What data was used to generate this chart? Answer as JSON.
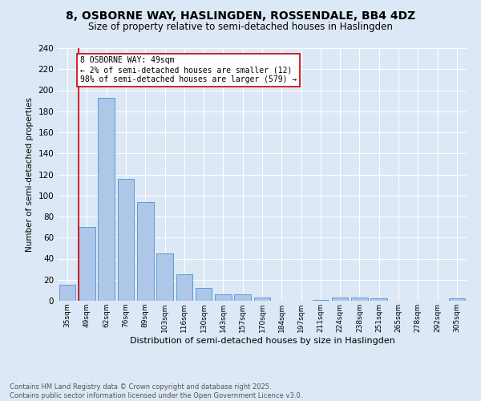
{
  "title": "8, OSBORNE WAY, HASLINGDEN, ROSSENDALE, BB4 4DZ",
  "subtitle": "Size of property relative to semi-detached houses in Haslingden",
  "xlabel": "Distribution of semi-detached houses by size in Haslingden",
  "ylabel": "Number of semi-detached properties",
  "categories": [
    "35sqm",
    "49sqm",
    "62sqm",
    "76sqm",
    "89sqm",
    "103sqm",
    "116sqm",
    "130sqm",
    "143sqm",
    "157sqm",
    "170sqm",
    "184sqm",
    "197sqm",
    "211sqm",
    "224sqm",
    "238sqm",
    "251sqm",
    "265sqm",
    "278sqm",
    "292sqm",
    "305sqm"
  ],
  "bar_values": [
    15,
    70,
    193,
    116,
    94,
    45,
    25,
    12,
    6,
    6,
    3,
    0,
    0,
    1,
    3,
    3,
    2,
    0,
    0,
    0,
    2
  ],
  "bar_color": "#aec6e8",
  "bar_edge_color": "#5b9bd5",
  "vline_x": 1,
  "vline_color": "#cc0000",
  "annotation_text": "8 OSBORNE WAY: 49sqm\n← 2% of semi-detached houses are smaller (12)\n98% of semi-detached houses are larger (579) →",
  "annotation_box_color": "#ffffff",
  "annotation_box_edge": "#cc0000",
  "ylim": [
    0,
    240
  ],
  "yticks": [
    0,
    20,
    40,
    60,
    80,
    100,
    120,
    140,
    160,
    180,
    200,
    220,
    240
  ],
  "footer_text": "Contains HM Land Registry data © Crown copyright and database right 2025.\nContains public sector information licensed under the Open Government Licence v3.0.",
  "bg_color": "#dce8f5",
  "plot_bg_color": "#dce8f5",
  "title_fontsize": 10,
  "subtitle_fontsize": 8.5,
  "annotation_fontsize": 7,
  "xlabel_fontsize": 8,
  "ylabel_fontsize": 7.5
}
